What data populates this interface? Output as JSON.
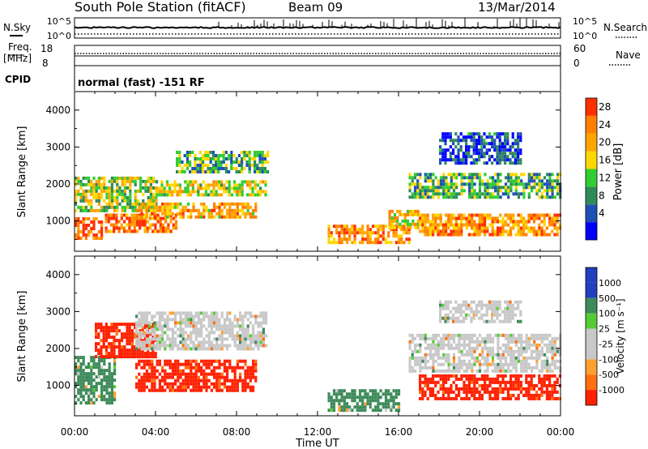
{
  "header": {
    "station": "South Pole Station (fitACF)",
    "beam": "Beam 09",
    "date": "13/Mar/2014"
  },
  "noise_panel": {
    "left_label": "N.Sky",
    "right_label": "N.Search",
    "left_ticks": [
      "10^5",
      "10^0"
    ],
    "right_ticks": [
      "10^5",
      "10^0"
    ]
  },
  "freq_panel": {
    "left_label_line1": "Freq.",
    "left_label_line2": "[MHz]",
    "right_label": "Nave",
    "left_ticks": [
      "18",
      "8"
    ],
    "right_ticks": [
      "60",
      "0"
    ]
  },
  "cpid_panel": {
    "label": "CPID",
    "text": "normal (fast) -151 RF"
  },
  "x_axis": {
    "label": "Time UT",
    "ticks": [
      "00:00",
      "04:00",
      "08:00",
      "12:00",
      "16:00",
      "20:00",
      "00:00"
    ]
  },
  "power_panel": {
    "ylabel": "Slant Range [km]",
    "yticks": [
      "4000",
      "3000",
      "2000",
      "1000"
    ],
    "colorbar_label": "Power [dB]",
    "colorbar_ticks": [
      "28",
      "24",
      "20",
      "16",
      "12",
      "8",
      "4"
    ],
    "colors": [
      "#0000ff",
      "#1e50b4",
      "#2e8b57",
      "#32cd32",
      "#ffd700",
      "#ffa500",
      "#ff7f00",
      "#ff3000"
    ]
  },
  "velocity_panel": {
    "ylabel": "Slant Range [km]",
    "yticks": [
      "4000",
      "3000",
      "2000",
      "1000"
    ],
    "colorbar_label": "Velocity [m s⁻¹]",
    "colorbar_ticks": [
      "1000",
      "500",
      "100",
      "25",
      "-25",
      "-100",
      "-500",
      "-1000"
    ],
    "colors": [
      "#2040c0",
      "#3d8b5a",
      "#55cc33",
      "#c8c8c8",
      "#c8c8c8",
      "#ffa030",
      "#ff7010",
      "#ff2000"
    ]
  },
  "chart_data": [
    {
      "type": "heatmap",
      "title": "Power [dB]",
      "xlabel": "Time UT",
      "ylabel": "Slant Range [km]",
      "xlim": [
        "00:00",
        "24:00"
      ],
      "ylim": [
        180,
        4500
      ],
      "zlim": [
        0,
        30
      ],
      "regions": [
        {
          "t_start": 0.0,
          "t_end": 1.3,
          "r_min": 500,
          "r_max": 1100,
          "level": 28
        },
        {
          "t_start": 0.0,
          "t_end": 4.0,
          "r_min": 1300,
          "r_max": 2200,
          "level": 16
        },
        {
          "t_start": 1.5,
          "t_end": 5.0,
          "r_min": 700,
          "r_max": 1200,
          "level": 26
        },
        {
          "t_start": 3.0,
          "t_end": 9.0,
          "r_min": 1100,
          "r_max": 1500,
          "level": 22
        },
        {
          "t_start": 4.0,
          "t_end": 9.5,
          "r_min": 1700,
          "r_max": 2100,
          "level": 18
        },
        {
          "t_start": 5.0,
          "t_end": 9.5,
          "r_min": 2300,
          "r_max": 2900,
          "level": 12
        },
        {
          "t_start": 12.5,
          "t_end": 16.5,
          "r_min": 400,
          "r_max": 900,
          "level": 24
        },
        {
          "t_start": 15.5,
          "t_end": 17.0,
          "r_min": 800,
          "r_max": 1300,
          "level": 20
        },
        {
          "t_start": 16.5,
          "t_end": 24.0,
          "r_min": 1600,
          "r_max": 2300,
          "level": 12
        },
        {
          "t_start": 17.0,
          "t_end": 24.0,
          "r_min": 600,
          "r_max": 1200,
          "level": 24
        },
        {
          "t_start": 18.0,
          "t_end": 22.0,
          "r_min": 2600,
          "r_max": 3400,
          "level": 6
        }
      ]
    },
    {
      "type": "heatmap",
      "title": "Velocity [m s⁻¹]",
      "xlabel": "Time UT",
      "ylabel": "Slant Range [km]",
      "xlim": [
        "00:00",
        "24:00"
      ],
      "ylim": [
        180,
        4500
      ],
      "zlim": [
        -1000,
        1000
      ],
      "regions": [
        {
          "t_start": 0.0,
          "t_end": 2.0,
          "r_min": 500,
          "r_max": 1800,
          "level": 100
        },
        {
          "t_start": 1.0,
          "t_end": 4.0,
          "r_min": 1800,
          "r_max": 2700,
          "level": -500
        },
        {
          "t_start": 3.0,
          "t_end": 9.5,
          "r_min": 2000,
          "r_max": 3000,
          "level": 0
        },
        {
          "t_start": 3.0,
          "t_end": 9.0,
          "r_min": 900,
          "r_max": 1700,
          "level": -500
        },
        {
          "t_start": 12.5,
          "t_end": 16.0,
          "r_min": 300,
          "r_max": 900,
          "level": 100
        },
        {
          "t_start": 16.5,
          "t_end": 24.0,
          "r_min": 1400,
          "r_max": 2400,
          "level": 0
        },
        {
          "t_start": 17.0,
          "t_end": 24.0,
          "r_min": 600,
          "r_max": 1300,
          "level": -500
        },
        {
          "t_start": 18.0,
          "t_end": 22.0,
          "r_min": 2700,
          "r_max": 3300,
          "level": 0
        }
      ]
    }
  ]
}
